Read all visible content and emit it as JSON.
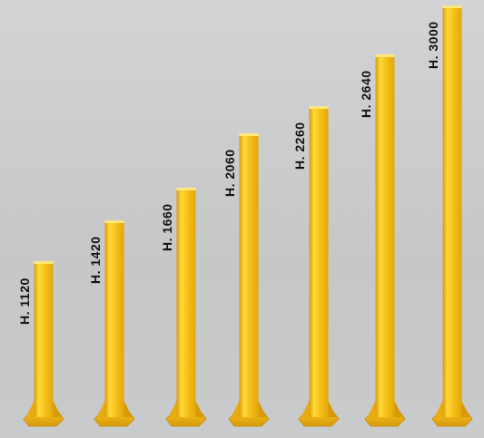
{
  "posts": [
    {
      "label": "H. 1120",
      "height_mm": 1120
    },
    {
      "label": "H. 1420",
      "height_mm": 1420
    },
    {
      "label": "H. 1660",
      "height_mm": 1660
    },
    {
      "label": "H. 2060",
      "height_mm": 2060
    },
    {
      "label": "H. 2260",
      "height_mm": 2260
    },
    {
      "label": "H. 2640",
      "height_mm": 2640
    },
    {
      "label": "H. 3000",
      "height_mm": 3000
    }
  ],
  "colors": {
    "background": "#c9cacc",
    "post_yellow": "#f6c21a",
    "post_highlight": "#ffe060",
    "post_shadow": "#d99a08",
    "label_text": "#121212"
  }
}
